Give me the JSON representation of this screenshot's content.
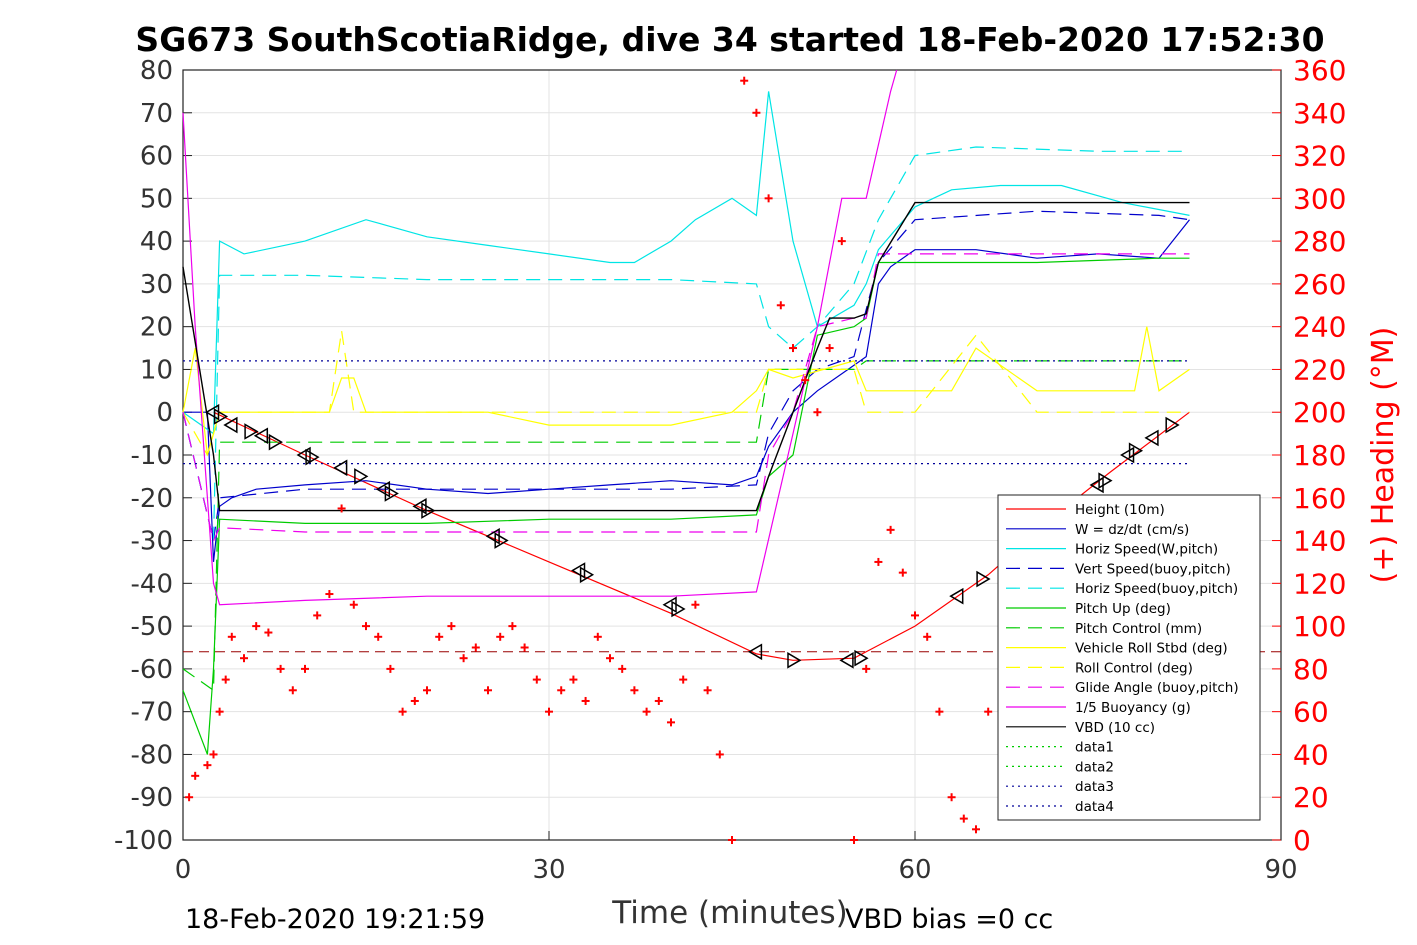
{
  "chart_data": {
    "type": "line",
    "title": "SG673 SouthScotiaRidge, dive 34 started 18-Feb-2020 17:52:30",
    "xlabel": "Time (minutes)",
    "ylabel": "",
    "y2label": "(+) Heading (°M)",
    "xlim": [
      0,
      90
    ],
    "ylim": [
      -100,
      80
    ],
    "y2lim": [
      0,
      360
    ],
    "xticks": [
      0,
      30,
      60,
      90
    ],
    "yticks": [
      80,
      70,
      60,
      50,
      40,
      30,
      20,
      10,
      0,
      -10,
      -20,
      -30,
      -40,
      -50,
      -60,
      -70,
      -80,
      -90,
      -100
    ],
    "y2ticks": [
      360,
      340,
      320,
      300,
      280,
      260,
      240,
      220,
      200,
      180,
      160,
      140,
      120,
      100,
      80,
      60,
      40,
      20,
      0
    ],
    "grid": true,
    "legend_position": "bottom-right",
    "footer_left": "18-Feb-2020 19:21:59",
    "footer_right": "VBD bias =0 cc",
    "series": [
      {
        "name": "Height (10m)",
        "color": "#ff0000",
        "style": "solid",
        "x": [
          2.5,
          10,
          20,
          30,
          40,
          47,
          50,
          55,
          60,
          66,
          72,
          76,
          82.5
        ],
        "y": [
          0,
          -10,
          -23,
          -35,
          -47,
          -56.5,
          -58,
          -57.5,
          -50,
          -38,
          -23,
          -14,
          0
        ]
      },
      {
        "name": "W = dz/dt (cm/s)",
        "color": "#0000cc",
        "style": "solid",
        "x": [
          0,
          2,
          2.5,
          3,
          4,
          6,
          10,
          15,
          20,
          25,
          30,
          35,
          40,
          45,
          47,
          48,
          50,
          52,
          55,
          56,
          57,
          58,
          60,
          65,
          70,
          75,
          80,
          82.5
        ],
        "y": [
          0,
          0,
          -35,
          -22,
          -20,
          -18,
          -17,
          -16,
          -18,
          -19,
          -18,
          -17,
          -16,
          -17,
          -15,
          -8,
          0,
          5,
          11,
          13,
          30,
          34,
          38,
          38,
          36,
          37,
          36,
          45
        ]
      },
      {
        "name": "Horiz Speed(W,pitch)",
        "color": "#00e5e5",
        "style": "solid",
        "x": [
          0,
          2.5,
          3,
          5,
          10,
          15,
          20,
          25,
          30,
          35,
          37,
          40,
          42,
          45,
          47,
          48,
          50,
          52,
          55,
          56,
          57,
          60,
          63,
          67,
          72,
          77,
          82.5
        ],
        "y": [
          0,
          -5,
          40,
          37,
          40,
          45,
          41,
          39,
          37,
          35,
          35,
          40,
          45,
          50,
          46,
          75,
          40,
          20,
          25,
          30,
          38,
          48,
          52,
          53,
          53,
          49,
          46
        ]
      },
      {
        "name": "Vert Speed(buoy,pitch)",
        "color": "#0000cc",
        "style": "dashed",
        "x": [
          0,
          2.5,
          3,
          10,
          20,
          30,
          40,
          47,
          48,
          50,
          52,
          55,
          57,
          60,
          70,
          80,
          82.5
        ],
        "y": [
          0,
          -30,
          -20,
          -18,
          -18,
          -18,
          -18,
          -17,
          -5,
          5,
          10,
          13,
          35,
          45,
          47,
          46,
          45
        ]
      },
      {
        "name": "Horiz Speed(buoy,pitch)",
        "color": "#00e5e5",
        "style": "dashed",
        "x": [
          0,
          2.5,
          3,
          10,
          20,
          30,
          40,
          47,
          48,
          50,
          52,
          55,
          57,
          60,
          65,
          75,
          82.5
        ],
        "y": [
          0,
          -30,
          32,
          32,
          31,
          31,
          31,
          30,
          20,
          15,
          20,
          30,
          45,
          60,
          62,
          61,
          61
        ]
      },
      {
        "name": "Pitch Up (deg)",
        "color": "#00cc00",
        "style": "solid",
        "x": [
          0,
          2,
          2.5,
          3,
          10,
          20,
          30,
          40,
          47,
          48,
          50,
          52,
          55,
          56,
          57,
          60,
          70,
          80,
          82.5
        ],
        "y": [
          -65,
          -80,
          -60,
          -25,
          -26,
          -26,
          -25,
          -25,
          -24,
          -15,
          -10,
          18,
          20,
          22,
          35,
          35,
          35,
          36,
          36
        ]
      },
      {
        "name": "Pitch Control (mm)",
        "color": "#00cc00",
        "style": "dashed",
        "x": [
          0,
          2.5,
          3,
          10,
          20,
          30,
          40,
          47,
          48,
          55,
          56,
          60,
          70,
          82.5
        ],
        "y": [
          -60,
          -65,
          -7,
          -7,
          -7,
          -7,
          -7,
          -7,
          10,
          10,
          12,
          12,
          12,
          12
        ]
      },
      {
        "name": "Vehicle Roll Stbd (deg)",
        "color": "#ffff00",
        "style": "solid",
        "x": [
          0,
          1,
          2,
          3,
          4,
          5,
          10,
          12,
          13,
          14,
          15,
          20,
          25,
          30,
          35,
          40,
          45,
          47,
          48,
          50,
          55,
          56,
          60,
          63,
          65,
          70,
          75,
          78,
          79,
          80,
          82.5
        ],
        "y": [
          0,
          15,
          -10,
          0,
          0,
          0,
          0,
          0,
          8,
          8,
          0,
          0,
          0,
          -3,
          -3,
          -3,
          0,
          5,
          10,
          8,
          12,
          5,
          5,
          5,
          15,
          5,
          5,
          5,
          20,
          5,
          10
        ]
      },
      {
        "name": "Roll Control (deg)",
        "color": "#ffff00",
        "style": "dashed",
        "x": [
          0,
          2,
          3,
          10,
          12,
          13,
          14,
          20,
          30,
          40,
          47,
          48,
          55,
          56,
          60,
          65,
          70,
          80,
          82.5
        ],
        "y": [
          0,
          -10,
          0,
          0,
          0,
          19,
          0,
          0,
          0,
          0,
          0,
          10,
          10,
          0,
          0,
          18,
          0,
          0,
          0
        ]
      },
      {
        "name": "Glide Angle (buoy,pitch)",
        "color": "#ee00ee",
        "style": "dashed",
        "x": [
          0,
          2.5,
          3,
          10,
          20,
          30,
          40,
          47,
          48,
          50,
          52,
          55,
          56,
          57,
          60,
          70,
          80,
          82.5
        ],
        "y": [
          0,
          -30,
          -27,
          -28,
          -28,
          -28,
          -28,
          -28,
          -10,
          0,
          20,
          22,
          22,
          37,
          37,
          37,
          37,
          37
        ]
      },
      {
        "name": "1/5 Buoyancy (g)",
        "color": "#ee00ee",
        "style": "solid",
        "x": [
          0,
          1,
          2.5,
          3,
          10,
          20,
          30,
          40,
          47,
          50,
          52,
          54,
          56,
          58,
          58.5
        ],
        "y": [
          70,
          20,
          -40,
          -45,
          -44,
          -43,
          -43,
          -43,
          -42,
          -5,
          20,
          50,
          50,
          75,
          80
        ]
      },
      {
        "name": "VBD (10 cc)",
        "color": "#000000",
        "style": "solid",
        "x": [
          0,
          2.5,
          3,
          10,
          20,
          30,
          40,
          47,
          48,
          50,
          52,
          53,
          55,
          56,
          57,
          60,
          70,
          80,
          82.5
        ],
        "y": [
          34,
          -10,
          -23,
          -23,
          -23,
          -23,
          -23,
          -23,
          -15,
          0,
          15,
          22,
          22,
          23,
          35,
          49,
          49,
          49,
          49
        ]
      },
      {
        "name": "data1",
        "color": "#00cc00",
        "style": "dotted",
        "x": [],
        "y": []
      },
      {
        "name": "data2",
        "color": "#00cc00",
        "style": "dotted",
        "x": [],
        "y": []
      },
      {
        "name": "data3",
        "color": "#000099",
        "style": "dotted",
        "x": [
          0,
          82.5
        ],
        "y": [
          12,
          12
        ]
      },
      {
        "name": "data4",
        "color": "#000099",
        "style": "dotted",
        "x": [
          0,
          82.5
        ],
        "y": [
          -12,
          -12
        ]
      }
    ],
    "reference_lines": [
      {
        "color": "#990000",
        "style": "dashed",
        "y": -56
      }
    ],
    "heading_series": {
      "color": "#ff0000",
      "marker": "+",
      "axis": "right",
      "x": [
        0.5,
        1,
        2,
        2.5,
        3,
        3.5,
        4,
        5,
        6,
        7,
        8,
        9,
        10,
        11,
        12,
        13,
        14,
        15,
        16,
        17,
        18,
        19,
        20,
        21,
        22,
        23,
        24,
        25,
        26,
        27,
        28,
        29,
        30,
        31,
        32,
        33,
        34,
        35,
        36,
        37,
        38,
        39,
        40,
        41,
        42,
        43,
        44,
        45,
        46,
        47,
        48,
        49,
        50,
        51,
        52,
        53,
        54,
        55,
        56,
        57,
        58,
        59,
        60,
        61,
        62,
        63,
        64,
        65,
        66
      ],
      "y": [
        20,
        30,
        35,
        40,
        60,
        75,
        95,
        85,
        100,
        97,
        80,
        70,
        80,
        105,
        115,
        155,
        110,
        100,
        95,
        80,
        60,
        65,
        70,
        95,
        100,
        85,
        90,
        70,
        95,
        100,
        90,
        75,
        60,
        70,
        75,
        65,
        95,
        85,
        80,
        70,
        60,
        65,
        55,
        75,
        110,
        70,
        40,
        0,
        355,
        340,
        300,
        250,
        230,
        215,
        200,
        230,
        280,
        0,
        80,
        130,
        145,
        125,
        105,
        95,
        60,
        20,
        10,
        5,
        60
      ]
    },
    "triangle_markers": {
      "color": "#000000",
      "marker": "triangle",
      "x": [
        2.5,
        3,
        4,
        5.5,
        6.5,
        7.5,
        10,
        10.5,
        13,
        14.5,
        16.5,
        17,
        19.5,
        20,
        25.5,
        26,
        32.5,
        33,
        40,
        40.5,
        47,
        50,
        54.5,
        55.5,
        63.5,
        65.5,
        75,
        75.5,
        77.5,
        78,
        79.5,
        81
      ],
      "y": [
        0,
        -1,
        -3,
        -4.5,
        -5.5,
        -7,
        -10,
        -10.5,
        -13,
        -15,
        -18,
        -19,
        -22,
        -23,
        -29,
        -30,
        -37,
        -38,
        -45,
        -46,
        -56,
        -58,
        -58,
        -57.5,
        -43,
        -39,
        -17,
        -16,
        -10,
        -9,
        -6,
        -3
      ]
    }
  }
}
